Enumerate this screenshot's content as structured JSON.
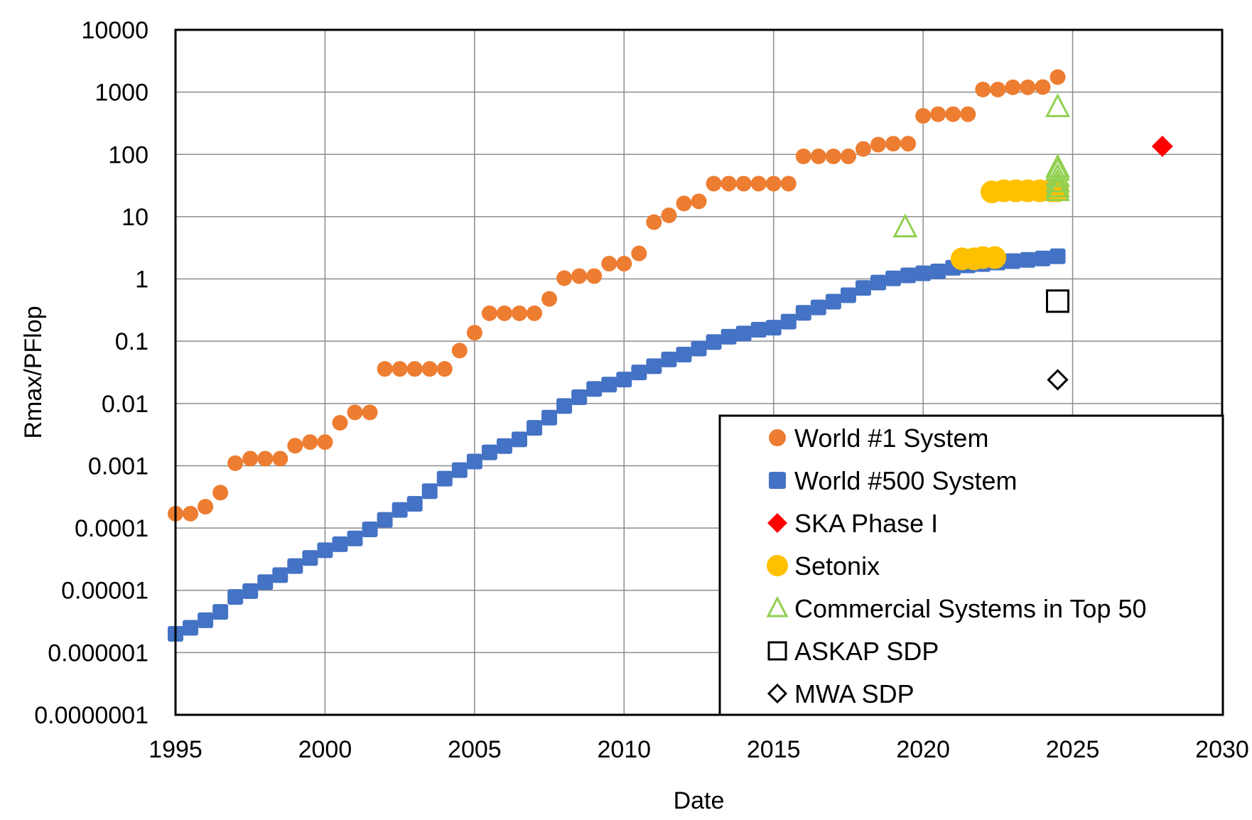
{
  "chart_data": {
    "type": "scatter",
    "title": "",
    "xlabel": "Date",
    "ylabel": "Rmax/PFlop",
    "xlim": [
      1995,
      2030
    ],
    "ylim": [
      1e-07,
      10000
    ],
    "yscale": "log",
    "grid": true,
    "legend_position": "bottom-right",
    "x_ticks": [
      "1995",
      "2000",
      "2005",
      "2010",
      "2015",
      "2020",
      "2025",
      "2030"
    ],
    "y_ticks": [
      "10000",
      "1000",
      "100",
      "10",
      "1",
      "0.1",
      "0.01",
      "0.001",
      "0.0001",
      "0.00001",
      "0.000001",
      "0.0000001"
    ],
    "series": [
      {
        "name": "World #1 System",
        "marker": "circle",
        "color": "#ED7D31",
        "filled": true,
        "points": [
          [
            1995.0,
            0.00017
          ],
          [
            1995.5,
            0.00017
          ],
          [
            1996.0,
            0.00022
          ],
          [
            1996.5,
            0.00037
          ],
          [
            1997.0,
            0.0011
          ],
          [
            1997.5,
            0.0013
          ],
          [
            1998.0,
            0.0013
          ],
          [
            1998.5,
            0.0013
          ],
          [
            1999.0,
            0.0021
          ],
          [
            1999.5,
            0.0024
          ],
          [
            2000.0,
            0.0024
          ],
          [
            2000.5,
            0.0049
          ],
          [
            2001.0,
            0.0072
          ],
          [
            2001.5,
            0.0072
          ],
          [
            2002.0,
            0.0359
          ],
          [
            2002.5,
            0.0359
          ],
          [
            2003.0,
            0.0359
          ],
          [
            2003.5,
            0.0359
          ],
          [
            2004.0,
            0.0359
          ],
          [
            2004.5,
            0.0707
          ],
          [
            2005.0,
            0.137
          ],
          [
            2005.5,
            0.281
          ],
          [
            2006.0,
            0.281
          ],
          [
            2006.5,
            0.281
          ],
          [
            2007.0,
            0.281
          ],
          [
            2007.5,
            0.478
          ],
          [
            2008.0,
            1.03
          ],
          [
            2008.5,
            1.11
          ],
          [
            2009.0,
            1.11
          ],
          [
            2009.5,
            1.76
          ],
          [
            2010.0,
            1.76
          ],
          [
            2010.5,
            2.57
          ],
          [
            2011.0,
            8.16
          ],
          [
            2011.5,
            10.5
          ],
          [
            2012.0,
            16.3
          ],
          [
            2012.5,
            17.6
          ],
          [
            2013.0,
            33.9
          ],
          [
            2013.5,
            33.9
          ],
          [
            2014.0,
            33.9
          ],
          [
            2014.5,
            33.9
          ],
          [
            2015.0,
            33.9
          ],
          [
            2015.5,
            33.9
          ],
          [
            2016.0,
            93.0
          ],
          [
            2016.5,
            93.0
          ],
          [
            2017.0,
            93.0
          ],
          [
            2017.5,
            93.0
          ],
          [
            2018.0,
            122.3
          ],
          [
            2018.5,
            143.5
          ],
          [
            2019.0,
            148.6
          ],
          [
            2019.5,
            148.6
          ],
          [
            2020.0,
            415.5
          ],
          [
            2020.5,
            442.0
          ],
          [
            2021.0,
            442.0
          ],
          [
            2021.5,
            442.0
          ],
          [
            2022.0,
            1102
          ],
          [
            2022.5,
            1102
          ],
          [
            2023.0,
            1194
          ],
          [
            2023.5,
            1194
          ],
          [
            2024.0,
            1206
          ],
          [
            2024.5,
            1742
          ]
        ]
      },
      {
        "name": "World #500 System",
        "marker": "square",
        "color": "#4472C4",
        "filled": true,
        "points": [
          [
            1995.0,
            2e-06
          ],
          [
            1995.5,
            2.5e-06
          ],
          [
            1996.0,
            3.3e-06
          ],
          [
            1996.5,
            4.5e-06
          ],
          [
            1997.0,
            7.8e-06
          ],
          [
            1997.5,
            9.7e-06
          ],
          [
            1998.0,
            1.35e-05
          ],
          [
            1998.5,
            1.75e-05
          ],
          [
            1999.0,
            2.45e-05
          ],
          [
            1999.5,
            3.3e-05
          ],
          [
            2000.0,
            4.4e-05
          ],
          [
            2000.5,
            5.5e-05
          ],
          [
            2001.0,
            6.8e-05
          ],
          [
            2001.5,
            9.5e-05
          ],
          [
            2002.0,
            0.000135
          ],
          [
            2002.5,
            0.000195
          ],
          [
            2003.0,
            0.000245
          ],
          [
            2003.5,
            0.00039
          ],
          [
            2004.0,
            0.00062
          ],
          [
            2004.5,
            0.00085
          ],
          [
            2005.0,
            0.00117
          ],
          [
            2005.5,
            0.00164
          ],
          [
            2006.0,
            0.00207
          ],
          [
            2006.5,
            0.00265
          ],
          [
            2007.0,
            0.00406
          ],
          [
            2007.5,
            0.00593
          ],
          [
            2008.0,
            0.0091
          ],
          [
            2008.5,
            0.0126
          ],
          [
            2009.0,
            0.0171
          ],
          [
            2009.5,
            0.0201
          ],
          [
            2010.0,
            0.0242
          ],
          [
            2010.5,
            0.0315
          ],
          [
            2011.0,
            0.0397
          ],
          [
            2011.5,
            0.0509
          ],
          [
            2012.0,
            0.0609
          ],
          [
            2012.5,
            0.0762
          ],
          [
            2013.0,
            0.0968
          ],
          [
            2013.5,
            0.118
          ],
          [
            2014.0,
            0.133
          ],
          [
            2014.5,
            0.153
          ],
          [
            2015.0,
            0.165
          ],
          [
            2015.5,
            0.206
          ],
          [
            2016.0,
            0.286
          ],
          [
            2016.5,
            0.349
          ],
          [
            2017.0,
            0.432
          ],
          [
            2017.5,
            0.548
          ],
          [
            2018.0,
            0.716
          ],
          [
            2018.5,
            0.874
          ],
          [
            2019.0,
            1.02
          ],
          [
            2019.5,
            1.14
          ],
          [
            2020.0,
            1.23
          ],
          [
            2020.5,
            1.32
          ],
          [
            2021.0,
            1.51
          ],
          [
            2021.5,
            1.65
          ],
          [
            2022.0,
            1.73
          ],
          [
            2022.5,
            1.83
          ],
          [
            2023.0,
            1.93
          ],
          [
            2023.5,
            2.02
          ],
          [
            2024.0,
            2.13
          ],
          [
            2024.5,
            2.31
          ]
        ]
      },
      {
        "name": "SKA Phase I",
        "marker": "diamond",
        "color": "#FF0000",
        "filled": true,
        "points": [
          [
            2028.0,
            135
          ]
        ]
      },
      {
        "name": "Setonix",
        "marker": "circle-large",
        "color": "#FFC000",
        "filled": true,
        "points": [
          [
            2021.3,
            2.1
          ],
          [
            2021.7,
            2.1
          ],
          [
            2022.0,
            2.2
          ],
          [
            2022.4,
            2.2
          ],
          [
            2022.3,
            25
          ],
          [
            2022.7,
            26
          ],
          [
            2023.1,
            26
          ],
          [
            2023.5,
            26
          ],
          [
            2023.9,
            26
          ],
          [
            2024.3,
            26
          ],
          [
            2024.5,
            26
          ]
        ]
      },
      {
        "name": "Commercial Systems in Top 50",
        "marker": "triangle",
        "color": "#92D050",
        "filled": false,
        "points": [
          [
            2019.4,
            6.8
          ],
          [
            2024.5,
            580
          ],
          [
            2024.5,
            26
          ],
          [
            2024.5,
            30
          ],
          [
            2024.5,
            36
          ],
          [
            2024.5,
            44
          ],
          [
            2024.5,
            55
          ],
          [
            2024.5,
            62
          ]
        ]
      },
      {
        "name": "ASKAP SDP",
        "marker": "square-open",
        "color": "#000000",
        "filled": false,
        "points": [
          [
            2024.5,
            0.44
          ]
        ]
      },
      {
        "name": "MWA SDP",
        "marker": "diamond-open",
        "color": "#000000",
        "filled": false,
        "points": [
          [
            2024.5,
            0.024
          ]
        ]
      }
    ]
  }
}
